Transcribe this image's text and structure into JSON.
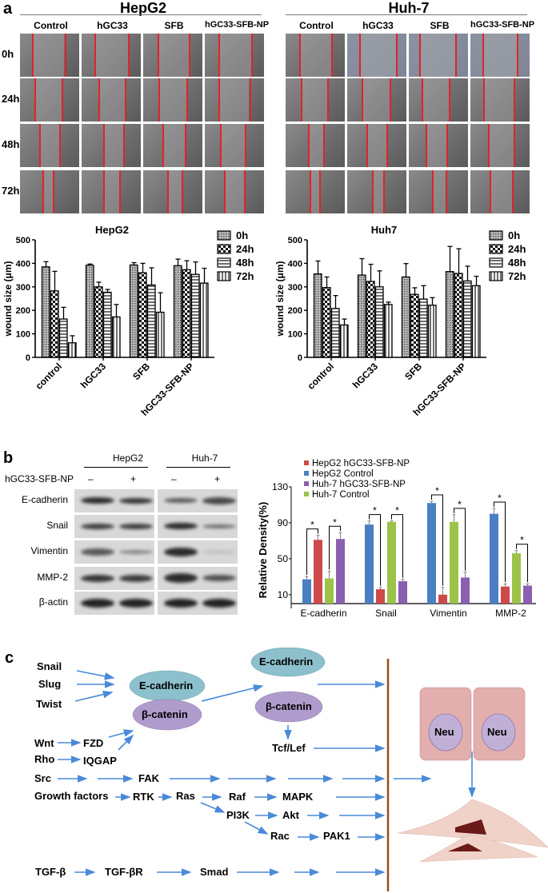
{
  "panel_a": {
    "letter": "a",
    "groups": [
      {
        "title": "HepG2",
        "columns": [
          "Control",
          "hGC33",
          "SFB",
          "hGC33-SFB-NP"
        ]
      },
      {
        "title": "Huh-7",
        "columns": [
          "Control",
          "hGC33",
          "SFB",
          "hGC33-SFB-NP"
        ]
      }
    ],
    "rows": [
      "0h",
      "24h",
      "48h",
      "72h"
    ]
  },
  "panel_b": {
    "letter": "b",
    "western": {
      "cell_lines": [
        "HepG2",
        "Huh-7"
      ],
      "treatment_label": "hGC33-SFB-NP",
      "lanes": [
        "–",
        "+",
        "–",
        "+"
      ],
      "proteins": [
        "E-cadherin",
        "Snail",
        "Vimentin",
        "MMP-2",
        "β-actin"
      ]
    }
  },
  "panel_c": {
    "letter": "c",
    "inputs_left": [
      "Snail",
      "Slug",
      "Twist"
    ],
    "ecad_1": "E-cadherin",
    "bcat_1": "β-catenin",
    "ecad_2": "E-cadherin",
    "bcat_2": "β-catenin",
    "tcf": "Tcf/Lef",
    "wnt": "Wnt",
    "fzd": "FZD",
    "rho": "Rho",
    "iqgap": "IQGAP",
    "src": "Src",
    "fak": "FAK",
    "gf": "Growth factors",
    "rtk": "RTK",
    "ras": "Ras",
    "raf": "Raf",
    "mapk": "MAPK",
    "pi3k": "PI3K",
    "akt": "Akt",
    "rac": "Rac",
    "pak1": "PAK1",
    "tgfb": "TGF-β",
    "tgfbr": "TGF-βR",
    "smad": "Smad",
    "neu1": "Neu",
    "neu2": "Neu",
    "colors": {
      "arrow": "#4a8ad8",
      "membrane": "#9b4f1a",
      "ecad": "#7fb7c4",
      "bcat": "#a38cbf",
      "cell": "#e0a9a8",
      "mesench": "#f0d0c8",
      "nucleus_dark": "#6b1a1a"
    }
  },
  "chart_data": [
    {
      "type": "bar",
      "title": "HepG2",
      "xlabel": "",
      "ylabel": "wound size (μm)",
      "ylim": [
        0,
        500
      ],
      "yticks": [
        0,
        100,
        200,
        300,
        400,
        500
      ],
      "categories": [
        "control",
        "hGC33",
        "SFB",
        "hGC33-SFB-NP"
      ],
      "legend": [
        "0h",
        "24h",
        "48h",
        "72h"
      ],
      "legend_position": "right",
      "series": [
        {
          "name": "0h",
          "values": [
            385,
            392,
            393,
            390
          ],
          "errors": [
            22,
            5,
            10,
            28
          ]
        },
        {
          "name": "24h",
          "values": [
            283,
            300,
            360,
            373
          ],
          "errors": [
            83,
            20,
            40,
            38
          ]
        },
        {
          "name": "48h",
          "values": [
            163,
            277,
            308,
            353
          ],
          "errors": [
            50,
            12,
            73,
            53
          ]
        },
        {
          "name": "72h",
          "values": [
            62,
            172,
            192,
            316
          ],
          "errors": [
            30,
            53,
            83,
            63
          ]
        }
      ]
    },
    {
      "type": "bar",
      "title": "Huh7",
      "xlabel": "",
      "ylabel": "wound size (μm)",
      "ylim": [
        0,
        500
      ],
      "yticks": [
        0,
        100,
        200,
        300,
        400,
        500
      ],
      "categories": [
        "control",
        "hGC33",
        "SFB",
        "hGC33-SFB-NP"
      ],
      "legend": [
        "0h",
        "24h",
        "48h",
        "72h"
      ],
      "legend_position": "right",
      "series": [
        {
          "name": "0h",
          "values": [
            355,
            350,
            342,
            365
          ],
          "errors": [
            55,
            70,
            57,
            107
          ]
        },
        {
          "name": "24h",
          "values": [
            297,
            323,
            268,
            357
          ],
          "errors": [
            45,
            73,
            28,
            105
          ]
        },
        {
          "name": "48h",
          "values": [
            208,
            300,
            248,
            325
          ],
          "errors": [
            55,
            68,
            57,
            63
          ]
        },
        {
          "name": "72h",
          "values": [
            138,
            225,
            222,
            305
          ],
          "errors": [
            25,
            10,
            32,
            40
          ]
        }
      ]
    },
    {
      "type": "bar",
      "title": "",
      "xlabel": "",
      "ylabel": "Relative Density(%)",
      "ylim": [
        0,
        130
      ],
      "yticks": [
        10,
        50,
        90,
        130
      ],
      "categories": [
        "E-cadherin",
        "Snail",
        "Vimentin",
        "MMP-2"
      ],
      "legend": [
        "HepG2 hGC33-SFB-NP",
        "HepG2 Control",
        "Huh-7 hGC33-SFB-NP",
        "Huh-7 Control"
      ],
      "legend_position": "top-left",
      "bar_order": [
        "HepG2 Control",
        "HepG2 hGC33-SFB-NP",
        "Huh-7 Control",
        "Huh-7 hGC33-SFB-NP"
      ],
      "series": [
        {
          "name": "HepG2 Control",
          "color": "#4a7fc4",
          "values": [
            27,
            88,
            112,
            100
          ],
          "errors": [
            3,
            4,
            2,
            6
          ]
        },
        {
          "name": "HepG2 hGC33-SFB-NP",
          "color": "#cc4a4a",
          "values": [
            71,
            16,
            10,
            19
          ],
          "errors": [
            5,
            2,
            8,
            3
          ]
        },
        {
          "name": "Huh-7 Control",
          "color": "#9cc24a",
          "values": [
            28,
            91,
            91,
            56
          ],
          "errors": [
            8,
            1,
            8,
            3
          ]
        },
        {
          "name": "Huh-7 hGC33-SFB-NP",
          "color": "#8a5fb0",
          "values": [
            72,
            25,
            29,
            20
          ],
          "errors": [
            7,
            2,
            6,
            2
          ]
        }
      ],
      "annotations": [
        "*",
        "*",
        "*",
        "*",
        "*",
        "*",
        "*",
        "*"
      ]
    }
  ]
}
